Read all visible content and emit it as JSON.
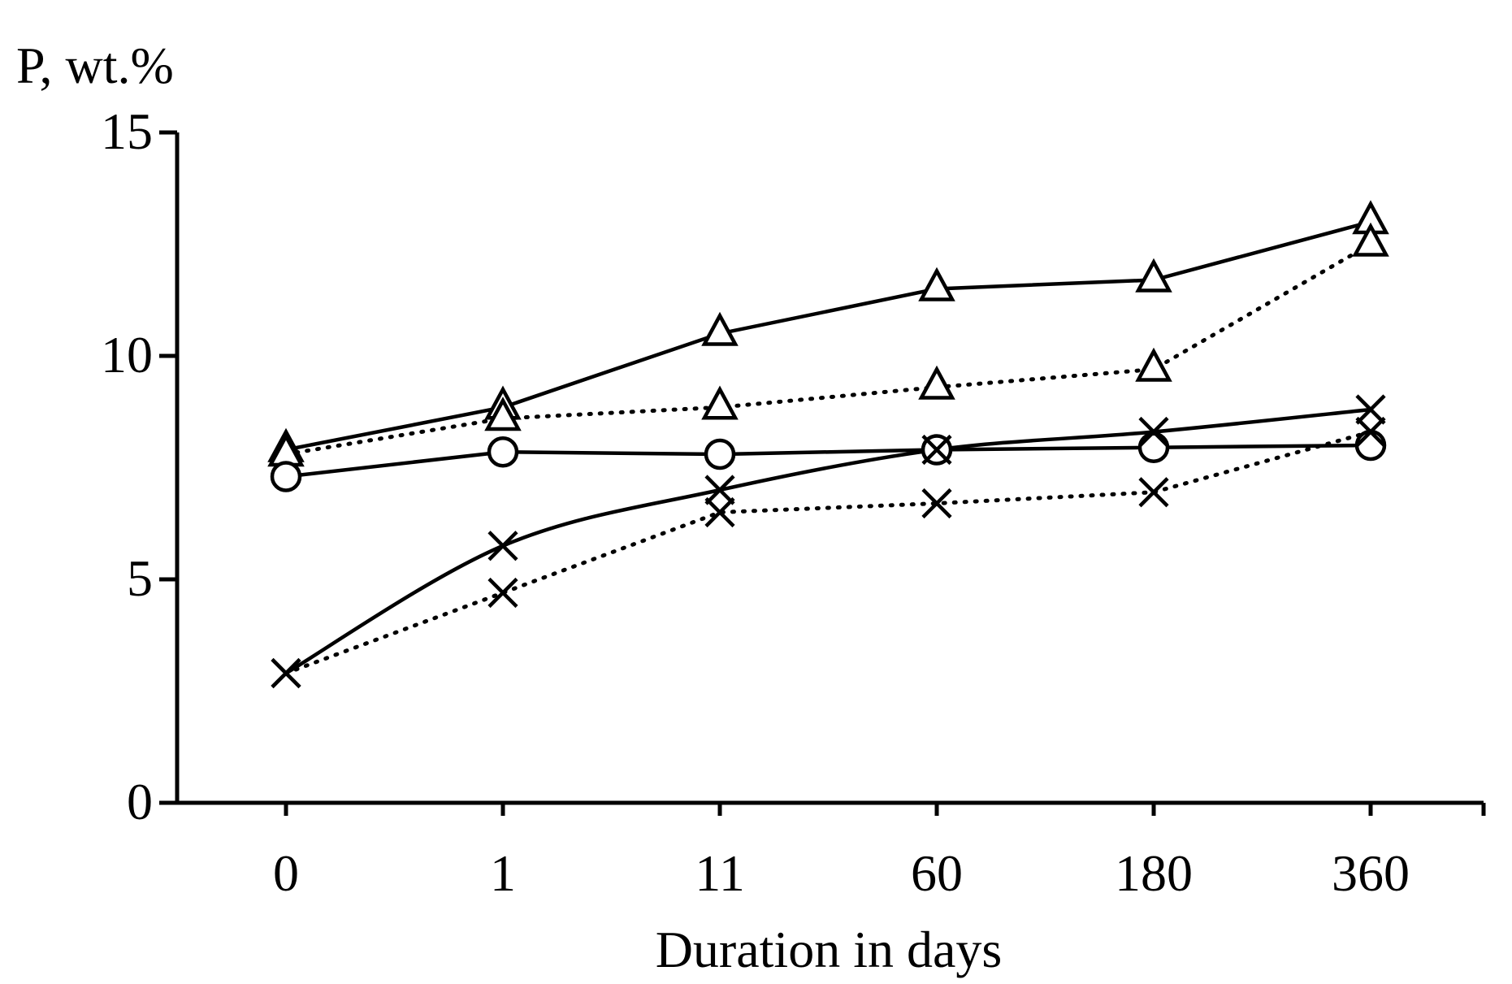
{
  "chart_data": {
    "type": "line",
    "ylabel": "P, wt.%",
    "xlabel": "Duration in days",
    "categories": [
      "0",
      "1",
      "11",
      "60",
      "180",
      "360"
    ],
    "ylim": [
      0,
      15
    ],
    "yticks": [
      0,
      5,
      10,
      15
    ],
    "ytick_labels": [
      "0",
      "5",
      "10",
      "15"
    ],
    "grid": false,
    "legend": "none",
    "series": [
      {
        "name": "triangle-solid",
        "marker": "triangle",
        "line": "solid",
        "smooth": false,
        "values": [
          7.9,
          8.85,
          10.5,
          11.5,
          11.7,
          13.0
        ]
      },
      {
        "name": "triangle-dotted",
        "marker": "triangle",
        "line": "dotted",
        "smooth": false,
        "values": [
          7.8,
          8.6,
          8.85,
          9.3,
          9.7,
          12.5
        ]
      },
      {
        "name": "circle-solid",
        "marker": "circle",
        "line": "solid",
        "smooth": false,
        "values": [
          7.3,
          7.85,
          7.8,
          7.9,
          7.95,
          8.0
        ]
      },
      {
        "name": "cross-solid",
        "marker": "cross",
        "line": "solid",
        "smooth": true,
        "values": [
          2.9,
          5.75,
          7.0,
          7.9,
          8.3,
          8.8
        ]
      },
      {
        "name": "cross-dotted",
        "marker": "cross",
        "line": "dotted",
        "smooth": false,
        "values": [
          2.9,
          4.7,
          6.5,
          6.7,
          6.95,
          8.3
        ]
      }
    ]
  }
}
